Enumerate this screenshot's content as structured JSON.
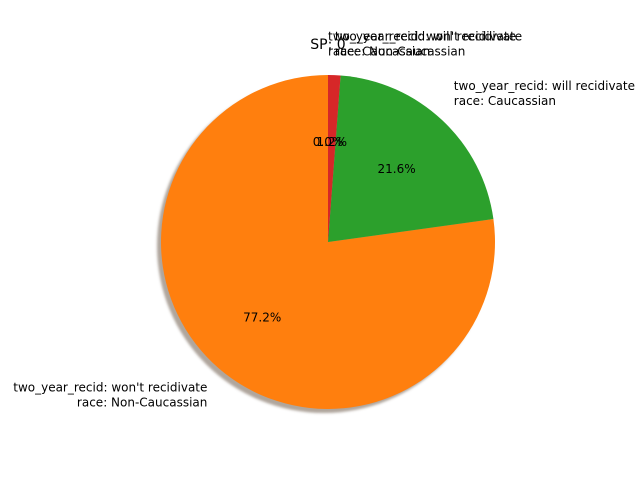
{
  "chart_data": {
    "type": "pie",
    "title": "SP: 0",
    "start_angle_deg": 90,
    "direction": "counterclockwise",
    "shadow": true,
    "slices": [
      {
        "label_lines": [
          "two_year_recid: won't recidivate",
          "race: Caucassian"
        ],
        "percent_label": "0.0%",
        "value": 0.0,
        "color": "#1f77b4"
      },
      {
        "label_lines": [
          "two_year_recid: won't recidivate",
          "race: Non-Caucassian"
        ],
        "percent_label": "77.2%",
        "value": 77.2,
        "color": "#ff7f0e"
      },
      {
        "label_lines": [
          "two_year_recid: will recidivate",
          "race: Caucassian"
        ],
        "percent_label": "21.6%",
        "value": 21.6,
        "color": "#2ca02c"
      },
      {
        "label_lines": [
          "two_year_recid: will recidivate",
          "race: Non-Caucassian"
        ],
        "percent_label": "1.2%",
        "value": 1.2,
        "color": "#d62728"
      }
    ]
  }
}
